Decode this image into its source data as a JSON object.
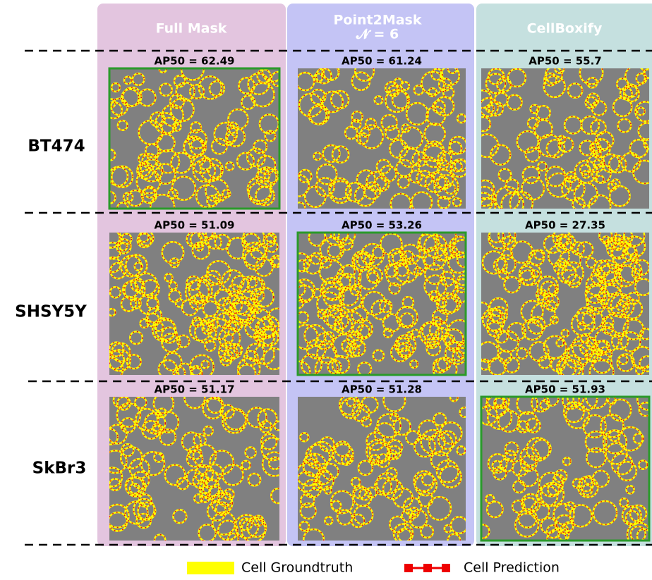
{
  "columns": [
    {
      "title": "Full Mask"
    },
    {
      "title": "Point2Mask",
      "subtitle": "𝓝 = 6"
    },
    {
      "title": "CellBoxify"
    }
  ],
  "rows": [
    {
      "label": "BT474",
      "scores": [
        "AP50 = 62.49",
        "AP50 = 61.24",
        "AP50 = 55.7"
      ]
    },
    {
      "label": "SHSY5Y",
      "scores": [
        "AP50 = 51.09",
        "AP50 = 53.26",
        "AP50 = 27.35"
      ]
    },
    {
      "label": "SkBr3",
      "scores": [
        "AP50 = 51.17",
        "AP50 = 51.28",
        "AP50 = 51.93"
      ]
    }
  ],
  "legend": [
    "Cell Groundtruth",
    "Cell Prediction"
  ]
}
